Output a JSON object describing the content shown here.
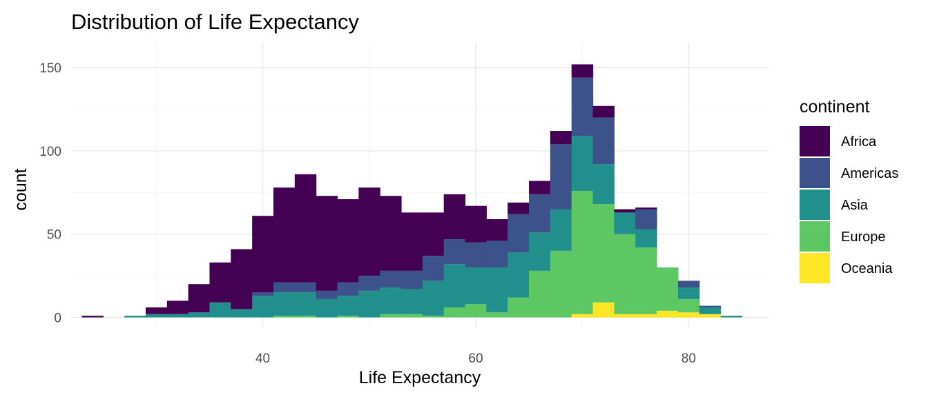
{
  "chart_data": {
    "type": "bar",
    "subtype": "stacked-histogram",
    "title": "Distribution of Life Expectancy",
    "xlabel": "Life Expectancy",
    "ylabel": "count",
    "xlim": [
      22,
      87.5
    ],
    "ylim": [
      -6,
      165
    ],
    "x_ticks": [
      40,
      60,
      80
    ],
    "y_ticks": [
      0,
      50,
      100,
      150
    ],
    "grid": true,
    "legend_title": "continent",
    "legend_position": "right",
    "bins": [
      [
        23,
        25
      ],
      [
        25,
        27
      ],
      [
        27,
        29
      ],
      [
        29,
        31
      ],
      [
        31,
        33
      ],
      [
        33,
        35
      ],
      [
        35,
        37
      ],
      [
        37,
        39
      ],
      [
        39,
        41
      ],
      [
        41,
        43
      ],
      [
        43,
        45
      ],
      [
        45,
        47
      ],
      [
        47,
        49
      ],
      [
        49,
        51
      ],
      [
        51,
        53
      ],
      [
        53,
        55
      ],
      [
        55,
        57
      ],
      [
        57,
        59
      ],
      [
        59,
        61
      ],
      [
        61,
        63
      ],
      [
        63,
        65
      ],
      [
        65,
        67
      ],
      [
        67,
        69
      ],
      [
        69,
        71
      ],
      [
        71,
        73
      ],
      [
        73,
        75
      ],
      [
        75,
        77
      ],
      [
        77,
        79
      ],
      [
        79,
        81
      ],
      [
        81,
        83
      ],
      [
        83,
        85
      ]
    ],
    "series": [
      {
        "name": "Oceania",
        "color": "#FDE725",
        "values": [
          0,
          0,
          0,
          0,
          0,
          0,
          0,
          0,
          0,
          0,
          0,
          0,
          0,
          0,
          0,
          0,
          0,
          0,
          0,
          0,
          0,
          0,
          0,
          2,
          9,
          2,
          2,
          4,
          3,
          2,
          0
        ]
      },
      {
        "name": "Europe",
        "color": "#5DC863",
        "values": [
          0,
          0,
          0,
          0,
          0,
          0,
          0,
          0,
          0,
          1,
          1,
          0,
          1,
          0,
          2,
          2,
          1,
          6,
          8,
          3,
          12,
          28,
          40,
          74,
          59,
          48,
          40,
          26,
          8,
          0,
          0
        ]
      },
      {
        "name": "Asia",
        "color": "#21908C",
        "values": [
          0,
          0,
          1,
          2,
          2,
          3,
          9,
          5,
          13,
          14,
          14,
          11,
          12,
          16,
          16,
          15,
          21,
          26,
          22,
          27,
          27,
          23,
          25,
          33,
          24,
          13,
          11,
          0,
          7,
          4,
          1
        ]
      },
      {
        "name": "Americas",
        "color": "#3B528B",
        "values": [
          0,
          0,
          0,
          0,
          0,
          0,
          0,
          0,
          2,
          6,
          6,
          5,
          8,
          9,
          10,
          11,
          15,
          15,
          15,
          16,
          23,
          23,
          39,
          35,
          28,
          0,
          12,
          0,
          4,
          1,
          0
        ]
      },
      {
        "name": "Africa",
        "color": "#440154",
        "values": [
          1,
          0,
          0,
          4,
          8,
          17,
          24,
          36,
          46,
          57,
          65,
          57,
          50,
          53,
          45,
          35,
          26,
          27,
          22,
          13,
          7,
          8,
          8,
          8,
          7,
          2,
          1,
          0,
          0,
          0,
          0
        ]
      }
    ],
    "legend": [
      "Africa",
      "Americas",
      "Asia",
      "Europe",
      "Oceania"
    ]
  }
}
